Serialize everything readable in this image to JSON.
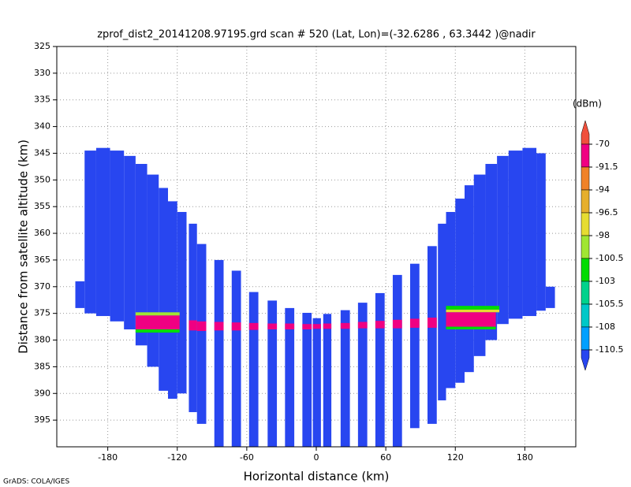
{
  "chart_data": {
    "type": "swath",
    "title": "zprof_dist2_20141208.97195.grd  scan # 520  (Lat, Lon)=(-32.6286 , 63.3442 )@nadir",
    "xlabel": "Horizontal distance (km)",
    "ylabel": "Distance from satellite altitude (km)",
    "footer": "GrADS: COLA/IGES",
    "xlim": [
      -224,
      224
    ],
    "ylim": [
      400,
      325
    ],
    "xticks": [
      -180,
      -120,
      -60,
      0,
      60,
      120,
      180
    ],
    "yticks": [
      325,
      330,
      335,
      340,
      345,
      350,
      355,
      360,
      365,
      370,
      375,
      380,
      385,
      390,
      395
    ],
    "grid": true,
    "colorbar": {
      "unit": "(dBm)",
      "levels": [
        -70,
        -91.5,
        -94,
        -96.5,
        -98,
        -100.5,
        -103,
        -105.5,
        -108,
        -110.5
      ],
      "colors": [
        "#f0503c",
        "#f00082",
        "#f08228",
        "#e6af2d",
        "#e6dc32",
        "#a0e632",
        "#00dc00",
        "#00d28c",
        "#00c8c8",
        "#00a0ff",
        "#2846f0"
      ]
    },
    "strips": [
      {
        "x0": -208,
        "x1": -200,
        "top": 369,
        "bottom": 374,
        "dbm": -115
      },
      {
        "x0": -200,
        "x1": -190,
        "top": 344.5,
        "bottom": 375,
        "dbm": -115
      },
      {
        "x0": -190,
        "x1": -178,
        "top": 344,
        "bottom": 375.5,
        "dbm": -115
      },
      {
        "x0": -178,
        "x1": -166,
        "top": 344.5,
        "bottom": 376.5,
        "dbm": -115
      },
      {
        "x0": -166,
        "x1": -156,
        "top": 345.5,
        "bottom": 378,
        "dbm": -115
      },
      {
        "x0": -156,
        "x1": -146,
        "top": 347,
        "bottom": 381,
        "dbm": -115
      },
      {
        "x0": -146,
        "x1": -136,
        "top": 349,
        "bottom": 385,
        "dbm": -115
      },
      {
        "x0": -136,
        "x1": -128,
        "top": 351.5,
        "bottom": 389.5,
        "dbm": -115
      },
      {
        "x0": -128,
        "x1": -120,
        "top": 354,
        "bottom": 391,
        "dbm": -115
      },
      {
        "x0": -120,
        "x1": -112,
        "top": 356,
        "bottom": 390,
        "dbm": -115
      },
      {
        "x0": -110,
        "x1": -103,
        "top": 358.2,
        "bottom": 393.5,
        "dbm": -115
      },
      {
        "x0": -103,
        "x1": -95,
        "top": 362,
        "bottom": 395.7,
        "dbm": -115
      },
      {
        "x0": -88,
        "x1": -80,
        "top": 365,
        "bottom": 400,
        "dbm": -115
      },
      {
        "x0": -73,
        "x1": -65,
        "top": 367,
        "bottom": 400,
        "dbm": -115
      },
      {
        "x0": -58,
        "x1": -50,
        "top": 371,
        "bottom": 400,
        "dbm": -115
      },
      {
        "x0": -42,
        "x1": -34,
        "top": 372.6,
        "bottom": 400,
        "dbm": -115
      },
      {
        "x0": -27,
        "x1": -19,
        "top": 374,
        "bottom": 400,
        "dbm": -115
      },
      {
        "x0": -12,
        "x1": -4,
        "top": 374.9,
        "bottom": 400,
        "dbm": -115
      },
      {
        "x0": -3,
        "x1": 4,
        "top": 375.9,
        "bottom": 400,
        "dbm": -115
      },
      {
        "x0": 6,
        "x1": 13,
        "top": 375.1,
        "bottom": 400,
        "dbm": -115
      },
      {
        "x0": 21,
        "x1": 29,
        "top": 374.4,
        "bottom": 400,
        "dbm": -115
      },
      {
        "x0": 36,
        "x1": 44,
        "top": 373,
        "bottom": 400,
        "dbm": -115
      },
      {
        "x0": 51,
        "x1": 59,
        "top": 371.2,
        "bottom": 400,
        "dbm": -115
      },
      {
        "x0": 66,
        "x1": 74,
        "top": 367.8,
        "bottom": 400,
        "dbm": -115
      },
      {
        "x0": 81,
        "x1": 89,
        "top": 365.7,
        "bottom": 396.5,
        "dbm": -115
      },
      {
        "x0": 96,
        "x1": 104,
        "top": 362.4,
        "bottom": 395.7,
        "dbm": -115
      },
      {
        "x0": 105,
        "x1": 112,
        "top": 358.2,
        "bottom": 391.3,
        "dbm": -115
      },
      {
        "x0": 112,
        "x1": 120,
        "top": 356,
        "bottom": 389,
        "dbm": -115
      },
      {
        "x0": 120,
        "x1": 128,
        "top": 353.5,
        "bottom": 388,
        "dbm": -115
      },
      {
        "x0": 128,
        "x1": 136,
        "top": 351,
        "bottom": 386,
        "dbm": -115
      },
      {
        "x0": 136,
        "x1": 146,
        "top": 349,
        "bottom": 383,
        "dbm": -115
      },
      {
        "x0": 146,
        "x1": 156,
        "top": 347,
        "bottom": 380,
        "dbm": -115
      },
      {
        "x0": 156,
        "x1": 166,
        "top": 345.5,
        "bottom": 377,
        "dbm": -115
      },
      {
        "x0": 166,
        "x1": 178,
        "top": 344.5,
        "bottom": 376,
        "dbm": -115
      },
      {
        "x0": 178,
        "x1": 190,
        "top": 344,
        "bottom": 375.5,
        "dbm": -115
      },
      {
        "x0": 190,
        "x1": 198,
        "top": 345,
        "bottom": 374.5,
        "dbm": -115
      },
      {
        "x0": 198,
        "x1": 206,
        "top": 370,
        "bottom": 374,
        "dbm": -115
      }
    ],
    "surface": [
      {
        "x0": -156,
        "x1": -118,
        "top": 374.8,
        "bottom": 375.4,
        "dbm": -99
      },
      {
        "x0": -156,
        "x1": -118,
        "top": 375.4,
        "bottom": 378,
        "dbm": -80
      },
      {
        "x0": -156,
        "x1": -118,
        "top": 378,
        "bottom": 378.6,
        "dbm": -101
      },
      {
        "x0": -110,
        "x1": -103,
        "top": 376.3,
        "bottom": 378.2,
        "dbm": -80
      },
      {
        "x0": -103,
        "x1": -95,
        "top": 376.5,
        "bottom": 378.3,
        "dbm": -80
      },
      {
        "x0": -88,
        "x1": -80,
        "top": 376.6,
        "bottom": 378.2,
        "dbm": -80
      },
      {
        "x0": -73,
        "x1": -65,
        "top": 376.7,
        "bottom": 378.2,
        "dbm": -80
      },
      {
        "x0": -58,
        "x1": -50,
        "top": 376.8,
        "bottom": 378.1,
        "dbm": -80
      },
      {
        "x0": -42,
        "x1": -34,
        "top": 376.9,
        "bottom": 378,
        "dbm": -80
      },
      {
        "x0": -27,
        "x1": -19,
        "top": 376.9,
        "bottom": 378,
        "dbm": -80
      },
      {
        "x0": -12,
        "x1": -4,
        "top": 377,
        "bottom": 378,
        "dbm": -80
      },
      {
        "x0": -3,
        "x1": 4,
        "top": 377,
        "bottom": 377.9,
        "dbm": -80
      },
      {
        "x0": 6,
        "x1": 13,
        "top": 376.9,
        "bottom": 377.9,
        "dbm": -80
      },
      {
        "x0": 21,
        "x1": 29,
        "top": 376.8,
        "bottom": 377.9,
        "dbm": -80
      },
      {
        "x0": 36,
        "x1": 44,
        "top": 376.6,
        "bottom": 377.8,
        "dbm": -80
      },
      {
        "x0": 51,
        "x1": 59,
        "top": 376.4,
        "bottom": 377.8,
        "dbm": -80
      },
      {
        "x0": 66,
        "x1": 74,
        "top": 376.2,
        "bottom": 377.8,
        "dbm": -80
      },
      {
        "x0": 81,
        "x1": 89,
        "top": 376,
        "bottom": 377.7,
        "dbm": -80
      },
      {
        "x0": 96,
        "x1": 104,
        "top": 375.8,
        "bottom": 377.7,
        "dbm": -80
      },
      {
        "x0": 112,
        "x1": 158,
        "top": 373.6,
        "bottom": 374.3,
        "dbm": -101
      },
      {
        "x0": 112,
        "x1": 158,
        "top": 374.3,
        "bottom": 374.8,
        "dbm": -97
      },
      {
        "x0": 112,
        "x1": 155,
        "top": 374.8,
        "bottom": 377.5,
        "dbm": -80
      },
      {
        "x0": 112,
        "x1": 155,
        "top": 377.5,
        "bottom": 378,
        "dbm": -101
      }
    ]
  }
}
